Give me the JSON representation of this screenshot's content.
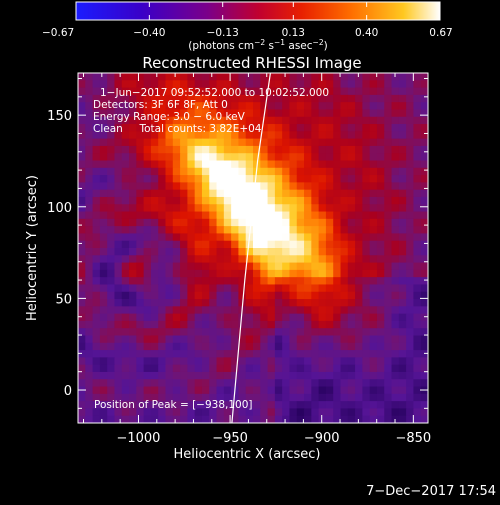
{
  "chart_data": {
    "type": "heatmap",
    "title": "Reconstructed RHESSI Image",
    "xlabel": "Heliocentric X (arcsec)",
    "ylabel": "Heliocentric Y (arcsec)",
    "xlim": [
      -1033,
      -842
    ],
    "ylim": [
      -18,
      173
    ],
    "x_ticks": [
      {
        "value": -1000,
        "label": "−1000"
      },
      {
        "value": -950,
        "label": "−950"
      },
      {
        "value": -900,
        "label": "−900"
      },
      {
        "value": -850,
        "label": "−850"
      }
    ],
    "y_ticks": [
      {
        "value": 0,
        "label": "0"
      },
      {
        "value": 50,
        "label": "50"
      },
      {
        "value": 100,
        "label": "100"
      },
      {
        "value": 150,
        "label": "150"
      }
    ],
    "colorbar": {
      "range": [
        -0.67,
        0.67
      ],
      "ticks": [
        {
          "value": -0.67,
          "label": "−0.67"
        },
        {
          "value": -0.4,
          "label": "−0.40"
        },
        {
          "value": -0.13,
          "label": "−0.13"
        },
        {
          "value": 0.13,
          "label": "0.13"
        },
        {
          "value": 0.4,
          "label": "0.40"
        },
        {
          "value": 0.67,
          "label": "0.67"
        }
      ],
      "unit_parts": [
        "(photons cm",
        "−2",
        " s",
        "−1",
        " asec",
        "−2",
        ")"
      ]
    },
    "info_lines": [
      "1−Jun−2017 09:52:52.000 to 10:02:52.000",
      "Detectors: 3F 6F 8F, Att 0",
      "Energy Range: 3.0 − 6.0 keV",
      "Clean     Total counts: 3.82E+04"
    ],
    "peak_label": "Position of Peak = [−938,100]",
    "peak": {
      "x": -938,
      "y": 100,
      "value": 0.67
    },
    "limb_line": [
      {
        "x": -949,
        "y": -18
      },
      {
        "x": -942,
        "y": 60
      },
      {
        "x": -935,
        "y": 125
      },
      {
        "x": -928,
        "y": 173
      }
    ],
    "footer_date": "7−Dec−2017 17:54"
  }
}
